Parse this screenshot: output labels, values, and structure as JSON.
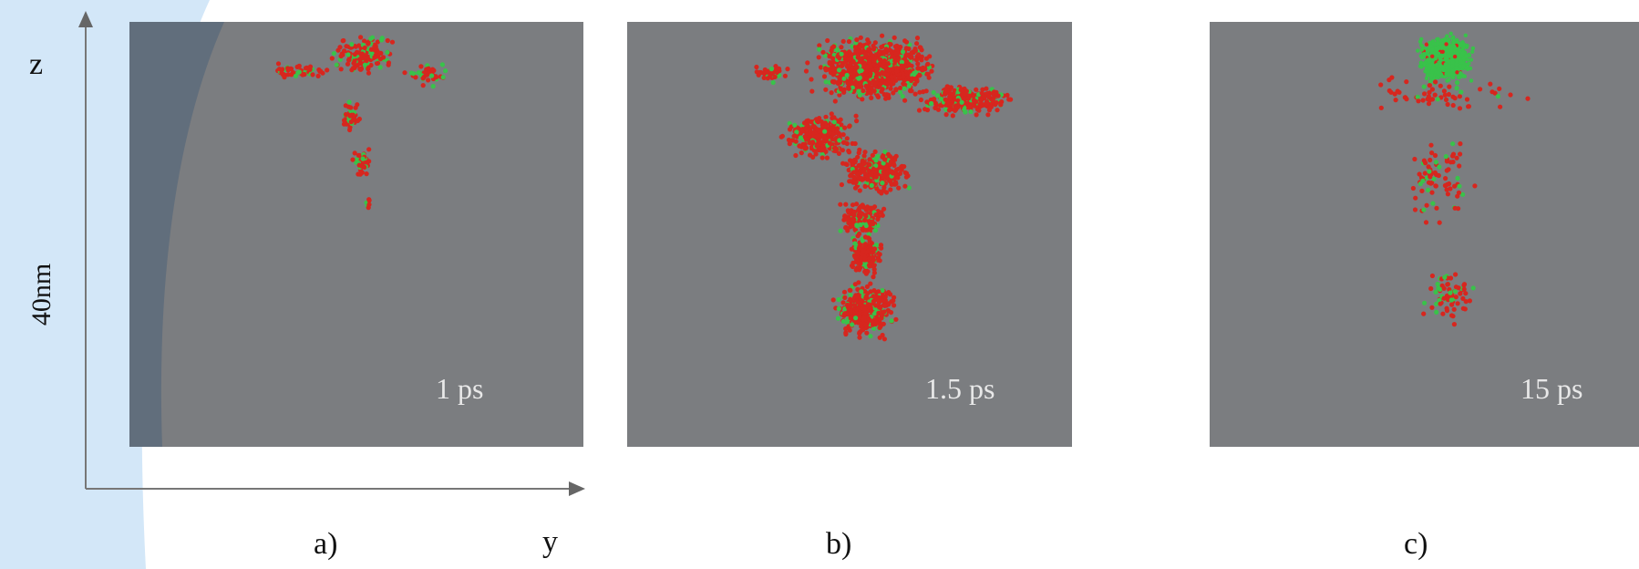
{
  "figure": {
    "axes": {
      "vertical_label": "z",
      "horizontal_label": "y",
      "scale_label": "40nm"
    },
    "panels": [
      {
        "id": "a",
        "label": "a)",
        "time": "1 ps"
      },
      {
        "id": "b",
        "label": "b)",
        "time": "1.5 ps"
      },
      {
        "id": "c",
        "label": "c)",
        "time": "15 ps"
      }
    ],
    "colors": {
      "panel_background": "#7b7d80",
      "particle_red": "#d7261e",
      "particle_green": "#39c24a",
      "page_backdrop": "#d3e7f8",
      "overlay": "#5a6b7c"
    }
  }
}
